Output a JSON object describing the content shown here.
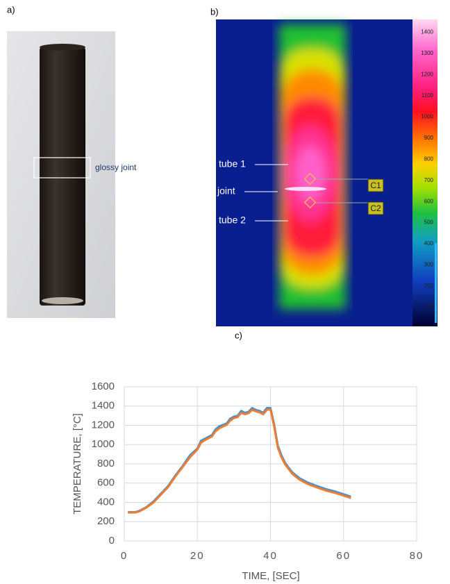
{
  "panel_labels": [
    "a)",
    "b)",
    "c)"
  ],
  "photo": {
    "annotation": "glossy joint"
  },
  "thermal": {
    "labels": [
      "tube 1",
      "joint",
      "tube 2"
    ],
    "markers": [
      "C1",
      "C2"
    ],
    "colorbar": {
      "lim": [
        10,
        1460
      ],
      "ticks": [
        1400,
        1300,
        1200,
        1100,
        1000,
        900,
        800,
        700,
        600,
        500,
        400,
        300,
        200,
        100
      ]
    }
  },
  "chart_data": {
    "type": "line",
    "xlabel": "TIME, [SEC]",
    "ylabel": "TEMPERATURE, [°C]",
    "x": [
      1,
      3,
      4,
      6,
      8,
      10,
      12,
      14,
      16,
      18,
      20,
      21,
      22,
      24,
      25,
      26,
      28,
      29,
      30,
      31,
      32,
      33,
      34,
      35,
      36,
      37,
      38,
      39,
      40,
      41,
      42,
      43,
      44,
      46,
      48,
      50,
      52,
      55,
      58,
      62
    ],
    "series": [
      {
        "color": "#4a90d0",
        "values": [
          300,
          300,
          310,
          350,
          410,
          490,
          570,
          680,
          780,
          890,
          960,
          1040,
          1060,
          1100,
          1160,
          1190,
          1220,
          1270,
          1290,
          1300,
          1350,
          1330,
          1340,
          1380,
          1360,
          1350,
          1330,
          1380,
          1380,
          1210,
          990,
          890,
          810,
          710,
          650,
          610,
          580,
          540,
          510,
          460
        ]
      },
      {
        "color": "#ed7d31",
        "values": [
          295,
          295,
          305,
          345,
          400,
          480,
          560,
          670,
          770,
          870,
          950,
          1020,
          1045,
          1085,
          1140,
          1170,
          1205,
          1250,
          1275,
          1285,
          1330,
          1315,
          1325,
          1360,
          1345,
          1335,
          1315,
          1360,
          1365,
          1190,
          970,
          870,
          795,
          695,
          635,
          595,
          565,
          525,
          495,
          445
        ]
      }
    ],
    "xlim": [
      0,
      80
    ],
    "xticks": [
      0,
      20,
      40,
      60,
      80
    ],
    "ylim": [
      0,
      1600
    ],
    "yticks": [
      0,
      200,
      400,
      600,
      800,
      1000,
      1200,
      1400,
      1600
    ],
    "grid": true
  }
}
